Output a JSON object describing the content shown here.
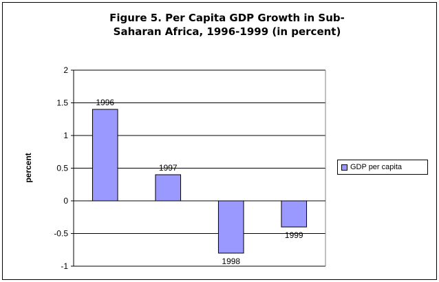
{
  "title": "Figure 5.  Per Capita GDP Growth in Sub-\nSaharan Africa, 1996-1999 (in percent)",
  "chart_data": {
    "type": "bar",
    "categories": [
      "1996",
      "1997",
      "1998",
      "1999"
    ],
    "series": [
      {
        "name": "GDP per capita",
        "values": [
          1.4,
          0.4,
          -0.8,
          -0.4
        ]
      }
    ],
    "data_labels": [
      "1996",
      "1997",
      "1998",
      "1999"
    ],
    "ylabel": "percent",
    "xlabel": "",
    "ylim": [
      -1,
      2
    ],
    "yticks": [
      2,
      1.5,
      1,
      0.5,
      0,
      -0.5,
      -1
    ],
    "ytick_labels": [
      "2",
      "1.5",
      "1",
      "0.5",
      "0",
      "-0.5",
      "-1"
    ],
    "grid": true,
    "legend": "right",
    "bar_color": "#9999ff"
  }
}
